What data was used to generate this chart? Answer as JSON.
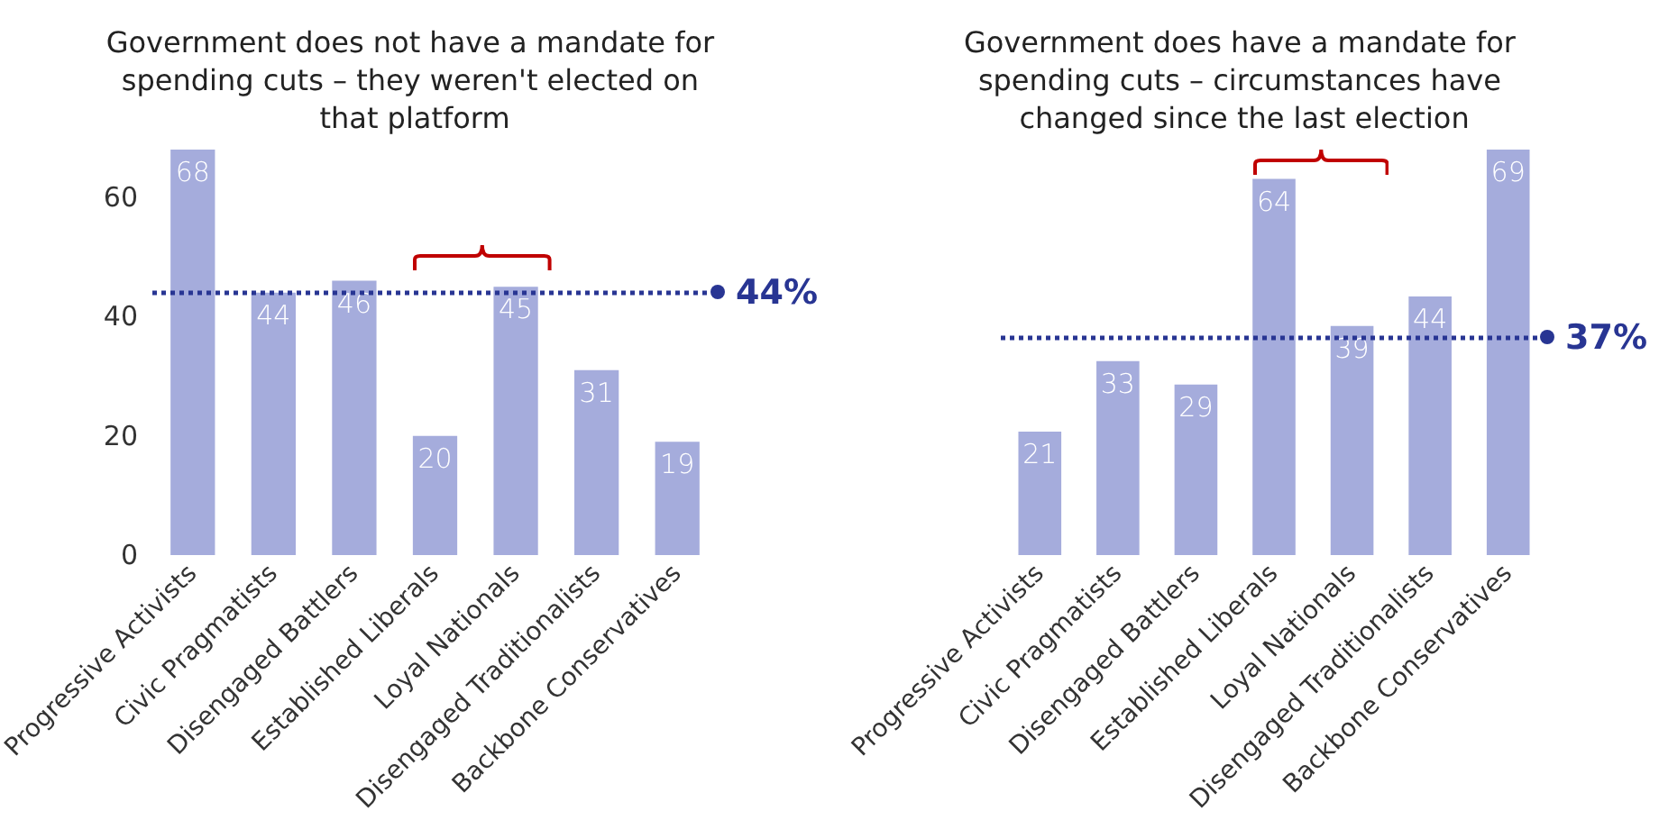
{
  "chart_data": [
    {
      "type": "bar",
      "title": "Government does not have a mandate for spending cuts – they weren't elected on that platform",
      "categories": [
        "Progressive Activists",
        "Civic Pragmatists",
        "Disengaged Battlers",
        "Established Liberals",
        "Loyal Nationals",
        "Disengaged Traditionalists",
        "Backbone Conservatives"
      ],
      "values": [
        68,
        44,
        46,
        20,
        45,
        31,
        19
      ],
      "color": "#a5acdc",
      "ylim": [
        0,
        68
      ],
      "yticks": [
        0,
        20,
        40,
        60
      ],
      "grid": false,
      "data_labels": true,
      "ref_lines": [
        {
          "axis": "y",
          "value": 44,
          "label": "44%",
          "color": "#283593",
          "line_style": "dotted"
        }
      ]
    },
    {
      "type": "bar",
      "title": "Government does have a mandate for spending cuts – circumstances have changed since the last election",
      "categories": [
        "Progressive Activists",
        "Civic Pragmatists",
        "Disengaged Battlers",
        "Established Liberals",
        "Loyal Nationals",
        "Disengaged Traditionalists",
        "Backbone Conservatives"
      ],
      "values": [
        21,
        33,
        29,
        64,
        39,
        44,
        69
      ],
      "color": "#a5acdc",
      "ylim": [
        0,
        69
      ],
      "grid": false,
      "data_labels": true,
      "tick_labels": "x",
      "ref_lines": [
        {
          "axis": "y",
          "value": 37,
          "label": "37%",
          "color": "#283593",
          "line_style": "dotted"
        }
      ]
    }
  ]
}
